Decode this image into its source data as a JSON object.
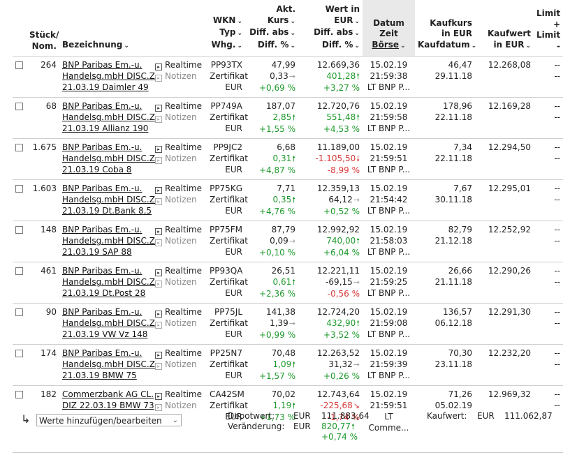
{
  "headers": {
    "stueck": [
      "Stück/",
      "Nom."
    ],
    "bezeichnung": "Bezeichnung",
    "wkn": [
      "WKN",
      "Typ",
      "Whg."
    ],
    "kurs": [
      "Akt. Kurs",
      "Diff. abs",
      "Diff. %"
    ],
    "wert": [
      "Wert in EUR",
      "Diff. abs",
      "Diff. %"
    ],
    "datum": [
      "Datum",
      "Zeit",
      "Börse"
    ],
    "kaufkurs": [
      "Kaufkurs",
      "in EUR",
      "Kaufdatum"
    ],
    "kaufwert": [
      "Kaufwert",
      "in EUR"
    ],
    "limit": [
      "Limit +",
      "Limit -"
    ]
  },
  "links": {
    "realtime": "Realtime",
    "notizen": "Notizen"
  },
  "rows": [
    {
      "qty": "264",
      "name": [
        "BNP Paribas Em.-u.",
        "Handelsg.mbH DISC.Z",
        "21.03.19 Daimler 49"
      ],
      "wkn": "PP93TX",
      "typ": "Zertifikat",
      "whg": "EUR",
      "kurs": "47,99",
      "kurs_abs": "0,33",
      "kurs_pct": "+0,69 %",
      "kurs_dir": "flat",
      "wert": "12.669,36",
      "wert_abs": "401,28",
      "wert_pct": "+3,27 %",
      "wert_dir": "up",
      "datum": "15.02.19",
      "zeit": "21:59:38",
      "boerse": "LT BNP P...",
      "kaufkurs": "46,47",
      "kaufdatum": "29.11.18",
      "kaufwert": "12.268,08",
      "limit_plus": "--",
      "limit_minus": "--"
    },
    {
      "qty": "68",
      "name": [
        "BNP Paribas Em.-u.",
        "Handelsg.mbH DISC.Z",
        "21.03.19 Allianz 190"
      ],
      "wkn": "PP749A",
      "typ": "Zertifikat",
      "whg": "EUR",
      "kurs": "187,07",
      "kurs_abs": "2,85",
      "kurs_pct": "+1,55 %",
      "kurs_dir": "up",
      "wert": "12.720,76",
      "wert_abs": "551,48",
      "wert_pct": "+4,53 %",
      "wert_dir": "up",
      "datum": "15.02.19",
      "zeit": "21:59:58",
      "boerse": "LT BNP P...",
      "kaufkurs": "178,96",
      "kaufdatum": "22.11.18",
      "kaufwert": "12.169,28",
      "limit_plus": "--",
      "limit_minus": "--"
    },
    {
      "qty": "1.675",
      "name": [
        "BNP Paribas Em.-u.",
        "Handelsg.mbH DISC.Z",
        "21.03.19 Coba 8"
      ],
      "wkn": "PP9JC2",
      "typ": "Zertifikat",
      "whg": "EUR",
      "kurs": "6,68",
      "kurs_abs": "0,31",
      "kurs_pct": "+4,87 %",
      "kurs_dir": "up",
      "wert": "11.189,00",
      "wert_abs": "-1.105,50",
      "wert_pct": "-8,99 %",
      "wert_dir": "down",
      "datum": "15.02.19",
      "zeit": "21:59:51",
      "boerse": "LT BNP P...",
      "kaufkurs": "7,34",
      "kaufdatum": "22.11.18",
      "kaufwert": "12.294,50",
      "limit_plus": "--",
      "limit_minus": "--"
    },
    {
      "qty": "1.603",
      "name": [
        "BNP Paribas Em.-u.",
        "Handelsg.mbH DISC.Z",
        "21.03.19 Dt.Bank 8,5"
      ],
      "wkn": "PP75KG",
      "typ": "Zertifikat",
      "whg": "EUR",
      "kurs": "7,71",
      "kurs_abs": "0,35",
      "kurs_pct": "+4,76 %",
      "kurs_dir": "up",
      "wert": "12.359,13",
      "wert_abs": "64,12",
      "wert_pct": "+0,52 %",
      "wert_dir": "flat",
      "datum": "15.02.19",
      "zeit": "21:54:42",
      "boerse": "LT BNP P...",
      "kaufkurs": "7,67",
      "kaufdatum": "30.11.18",
      "kaufwert": "12.295,01",
      "limit_plus": "--",
      "limit_minus": "--"
    },
    {
      "qty": "148",
      "name": [
        "BNP Paribas Em.-u.",
        "Handelsg.mbH DISC.Z",
        "21.03.19 SAP 88"
      ],
      "wkn": "PP75FM",
      "typ": "Zertifikat",
      "whg": "EUR",
      "kurs": "87,79",
      "kurs_abs": "0,09",
      "kurs_pct": "+0,10 %",
      "kurs_dir": "flat",
      "wert": "12.992,92",
      "wert_abs": "740,00",
      "wert_pct": "+6,04 %",
      "wert_dir": "up",
      "datum": "15.02.19",
      "zeit": "21:58:03",
      "boerse": "LT BNP P...",
      "kaufkurs": "82,79",
      "kaufdatum": "21.12.18",
      "kaufwert": "12.252,92",
      "limit_plus": "--",
      "limit_minus": "--"
    },
    {
      "qty": "461",
      "name": [
        "BNP Paribas Em.-u.",
        "Handelsg.mbH DISC.Z",
        "21.03.19 Dt.Post 28"
      ],
      "wkn": "PP93QA",
      "typ": "Zertifikat",
      "whg": "EUR",
      "kurs": "26,51",
      "kurs_abs": "0,61",
      "kurs_pct": "+2,36 %",
      "kurs_dir": "up",
      "wert": "12.221,11",
      "wert_abs": "-69,15",
      "wert_pct": "-0,56 %",
      "wert_dir": "flat",
      "datum": "15.02.19",
      "zeit": "21:59:25",
      "boerse": "LT BNP P...",
      "kaufkurs": "26,66",
      "kaufdatum": "21.11.18",
      "kaufwert": "12.290,26",
      "limit_plus": "--",
      "limit_minus": "--"
    },
    {
      "qty": "90",
      "name": [
        "BNP Paribas Em.-u.",
        "Handelsg.mbH DISC.Z",
        "21.03.19 VW Vz 148"
      ],
      "wkn": "PP75JL",
      "typ": "Zertifikat",
      "whg": "EUR",
      "kurs": "141,38",
      "kurs_abs": "1,39",
      "kurs_pct": "+0,99 %",
      "kurs_dir": "flat",
      "wert": "12.724,20",
      "wert_abs": "432,90",
      "wert_pct": "+3,52 %",
      "wert_dir": "up",
      "datum": "15.02.19",
      "zeit": "21:59:08",
      "boerse": "LT BNP P...",
      "kaufkurs": "136,57",
      "kaufdatum": "06.12.18",
      "kaufwert": "12.291,30",
      "limit_plus": "--",
      "limit_minus": "--"
    },
    {
      "qty": "174",
      "name": [
        "BNP Paribas Em.-u.",
        "Handelsg.mbH DISC.Z",
        "21.03.19 BMW 75"
      ],
      "wkn": "PP25N7",
      "typ": "Zertifikat",
      "whg": "EUR",
      "kurs": "70,48",
      "kurs_abs": "1,09",
      "kurs_pct": "+1,57 %",
      "kurs_dir": "up",
      "wert": "12.263,52",
      "wert_abs": "31,32",
      "wert_pct": "+0,26 %",
      "wert_dir": "flat",
      "datum": "15.02.19",
      "zeit": "21:59:39",
      "boerse": "LT BNP P...",
      "kaufkurs": "70,30",
      "kaufdatum": "23.11.18",
      "kaufwert": "12.232,20",
      "limit_plus": "--",
      "limit_minus": "--"
    },
    {
      "qty": "182",
      "name": [
        "Commerzbank AG CL.",
        "DIZ 22.03.19 BMW 73"
      ],
      "wkn": "CA42SM",
      "typ": "Zertifikat",
      "whg": "EUR",
      "kurs": "70,02",
      "kurs_abs": "1,19",
      "kurs_pct": "+1,73 %",
      "kurs_dir": "up",
      "wert": "12.743,64",
      "wert_abs": "-225,68",
      "wert_pct": "-1,74 %",
      "wert_dir": "downright",
      "datum": "15.02.19",
      "zeit": "21:59:51",
      "boerse": "LT",
      "boerse2": "Comme...",
      "kaufkurs": "71,26",
      "kaufdatum": "05.02.19",
      "kaufwert": "12.969,32",
      "limit_plus": "--",
      "limit_minus": "--"
    }
  ],
  "footer": {
    "select_value": "Werte hinzufügen/bearbeiten",
    "depotwert_label": "Depotwert:",
    "veraenderung_label": "Veränderung:",
    "cur1": "EUR",
    "cur2": "EUR",
    "depotwert": "111.883,64",
    "veraenderung_abs": "820,77",
    "veraenderung_pct": "+0,74 %",
    "kaufwert_label": "Kaufwert:",
    "kaufwert_cur": "EUR",
    "kaufwert": "111.062,87"
  },
  "colors": {
    "positive": "#1e9a2c",
    "negative": "#d93838",
    "sorted_header_bg": "#e9e9e9"
  }
}
